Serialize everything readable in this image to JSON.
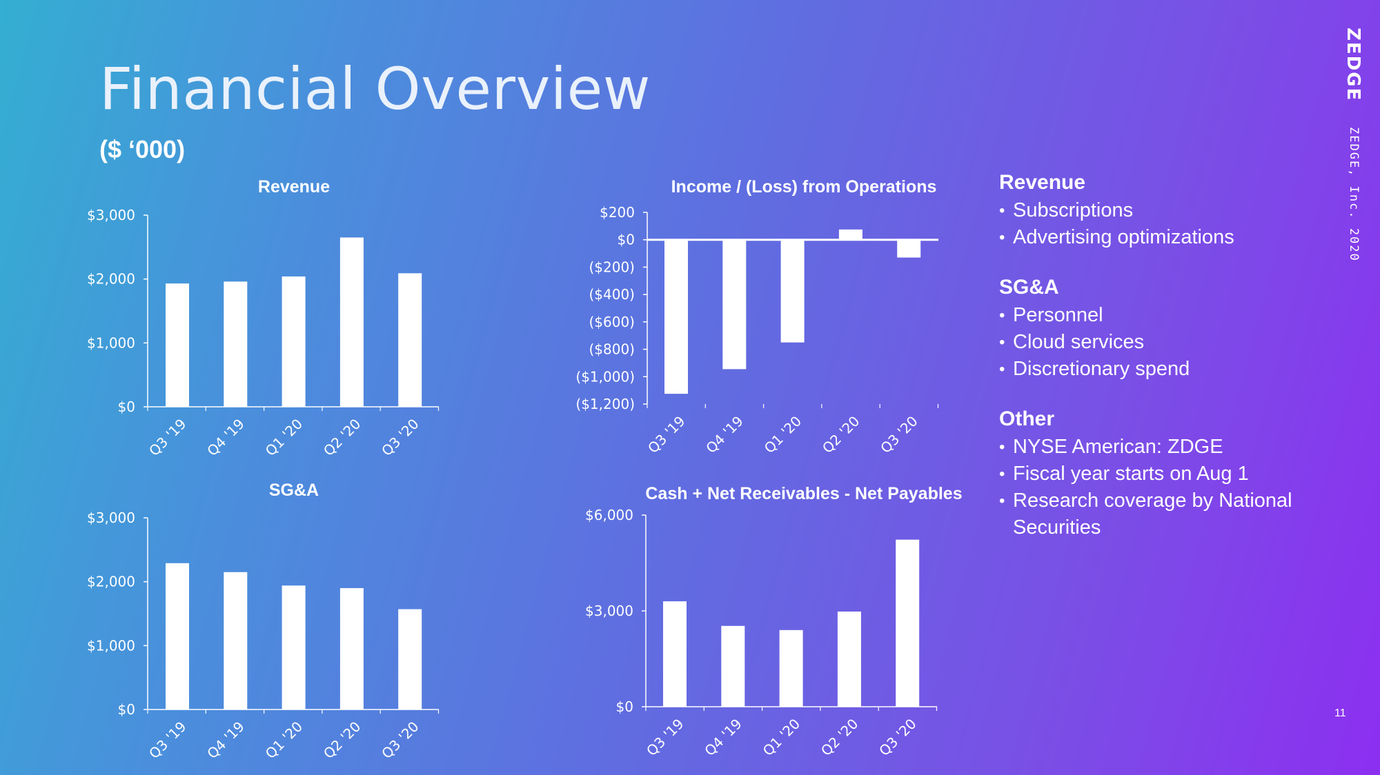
{
  "page": {
    "title": "Financial Overview",
    "subtitle": "($ ‘000)",
    "brand": "ZEDGE",
    "footer": "ZEDGE, Inc. 2020",
    "page_number": "11"
  },
  "sidebar": [
    {
      "heading": "Revenue",
      "items": [
        "Subscriptions",
        "Advertising optimizations"
      ]
    },
    {
      "heading": "SG&A",
      "items": [
        "Personnel",
        "Cloud services",
        "Discretionary spend"
      ]
    },
    {
      "heading": "Other",
      "items": [
        "NYSE American: ZDGE",
        "Fiscal year starts on Aug 1",
        "Research coverage by National Securities"
      ]
    }
  ],
  "chart_data": [
    {
      "id": "revenue",
      "type": "bar",
      "title": "Revenue",
      "categories": [
        "Q3 '19",
        "Q4 '19",
        "Q1 '20",
        "Q2 '20",
        "Q3 '20"
      ],
      "values": [
        1930,
        1960,
        2040,
        2650,
        2090
      ],
      "ylim": [
        0,
        3000
      ],
      "yticks": [
        0,
        1000,
        2000,
        3000
      ],
      "ytick_labels": [
        "$0",
        "$1,000",
        "$2,000",
        "$3,000"
      ],
      "color": "#ffffff"
    },
    {
      "id": "income",
      "type": "bar",
      "title": "Income / (Loss) from Operations",
      "categories": [
        "Q3 '19",
        "Q4 '19",
        "Q1 '20",
        "Q2 '20",
        "Q3 '20"
      ],
      "values": [
        -1125,
        -945,
        -750,
        75,
        -130
      ],
      "ylim": [
        -1200,
        200
      ],
      "yticks": [
        200,
        0,
        -200,
        -400,
        -600,
        -800,
        -1000,
        -1200
      ],
      "ytick_labels": [
        "$200",
        "$0",
        "($200)",
        "($400)",
        "($600)",
        "($800)",
        "($1,000)",
        "($1,200)"
      ],
      "color": "#ffffff"
    },
    {
      "id": "sga",
      "type": "bar",
      "title": "SG&A",
      "categories": [
        "Q3 '19",
        "Q4 '19",
        "Q1 '20",
        "Q2 '20",
        "Q3 '20"
      ],
      "values": [
        2290,
        2150,
        1940,
        1900,
        1570
      ],
      "ylim": [
        0,
        3000
      ],
      "yticks": [
        0,
        1000,
        2000,
        3000
      ],
      "ytick_labels": [
        "$0",
        "$1,000",
        "$2,000",
        "$3,000"
      ],
      "color": "#ffffff"
    },
    {
      "id": "cash",
      "type": "bar",
      "title": "Cash + Net Receivables - Net Payables",
      "categories": [
        "Q3 '19",
        "Q4 '19",
        "Q1 '20",
        "Q2 '20",
        "Q3 '20"
      ],
      "values": [
        3300,
        2530,
        2400,
        2980,
        5230
      ],
      "ylim": [
        0,
        6000
      ],
      "yticks": [
        0,
        3000,
        6000
      ],
      "ytick_labels": [
        "$0",
        "$3,000",
        "$6,000"
      ],
      "color": "#ffffff"
    }
  ]
}
